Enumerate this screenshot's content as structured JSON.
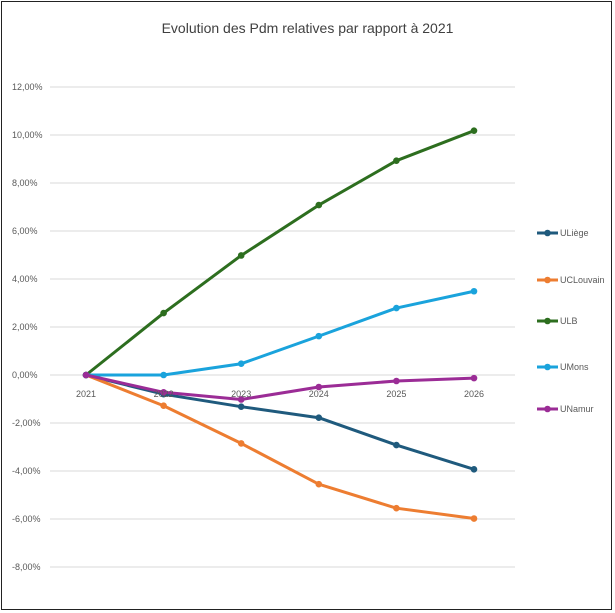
{
  "chart_data": {
    "type": "line",
    "title": "Evolution des Pdm relatives par rapport à 2021",
    "xlabel": "",
    "ylabel": "",
    "categories": [
      "2021",
      "2022",
      "2023",
      "2024",
      "2025",
      "2026"
    ],
    "ylim": [
      -0.08,
      0.12
    ],
    "yticks": [
      0.12,
      0.1,
      0.08,
      0.06,
      0.04,
      0.02,
      0.0,
      -0.02,
      -0.04,
      -0.06,
      -0.08
    ],
    "ytick_labels": [
      "12,00%",
      "10,00%",
      "8,00%",
      "6,00%",
      "4,00%",
      "2,00%",
      "0,00%",
      "-2,00%",
      "-4,00%",
      "-6,00%",
      "-8,00%"
    ],
    "grid": true,
    "legend_position": "right",
    "series": [
      {
        "name": "ULiège",
        "color": "#1f5a7d",
        "values": [
          0.0,
          -0.008,
          -0.0132,
          -0.0178,
          -0.0292,
          -0.0393
        ]
      },
      {
        "name": "UCLouvain",
        "color": "#ed7d31",
        "values": [
          0.0,
          -0.0128,
          -0.0285,
          -0.0455,
          -0.0555,
          -0.0598
        ]
      },
      {
        "name": "ULB",
        "color": "#2d6e1f",
        "values": [
          0.0,
          0.0258,
          0.0498,
          0.0708,
          0.0893,
          0.1018
        ]
      },
      {
        "name": "UMons",
        "color": "#1aa3dc",
        "values": [
          0.0,
          0.0,
          0.0047,
          0.0162,
          0.0279,
          0.0349
        ]
      },
      {
        "name": "UNamur",
        "color": "#9b2c96",
        "values": [
          0.0,
          -0.0072,
          -0.0102,
          -0.005,
          -0.0025,
          -0.0013
        ]
      }
    ]
  }
}
